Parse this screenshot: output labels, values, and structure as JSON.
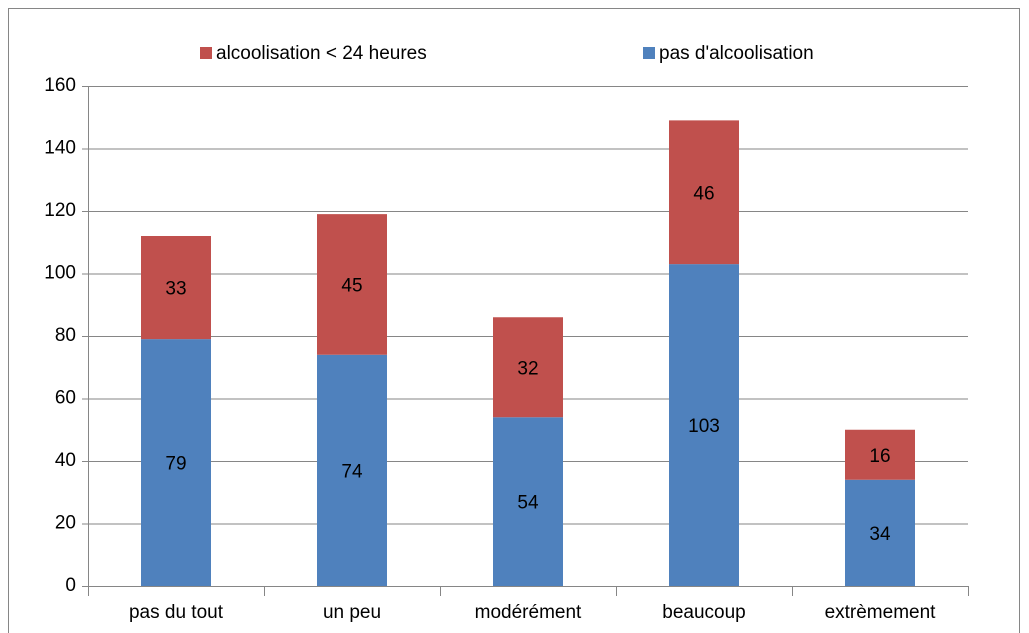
{
  "chart_data": {
    "type": "bar",
    "stacked": true,
    "categories": [
      "pas du tout",
      "un peu",
      "modérément",
      "beaucoup",
      "extrèmement"
    ],
    "series": [
      {
        "name": "pas d'alcoolisation",
        "color": "#4f81bd",
        "values": [
          79,
          74,
          54,
          103,
          34
        ]
      },
      {
        "name": "alcoolisation < 24 heures",
        "color": "#c0504d",
        "values": [
          33,
          45,
          32,
          46,
          16
        ]
      }
    ],
    "ylim": [
      0,
      160
    ],
    "yticks": [
      0,
      20,
      40,
      60,
      80,
      100,
      120,
      140,
      160
    ],
    "grid": true,
    "legend": "top"
  }
}
